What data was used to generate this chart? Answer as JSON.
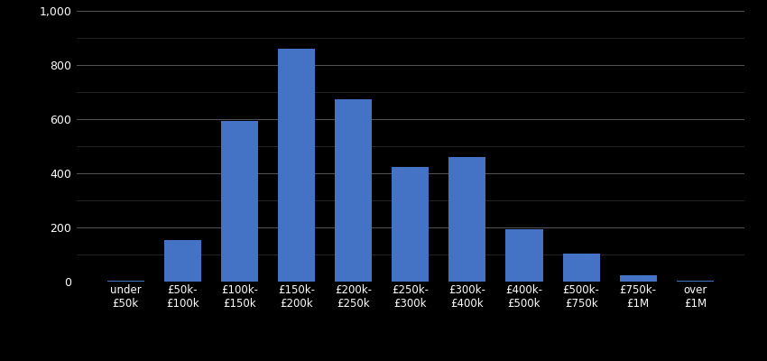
{
  "categories": [
    "under\n£50k",
    "£50k-\n£100k",
    "£100k-\n£150k",
    "£150k-\n£200k",
    "£200k-\n£250k",
    "£250k-\n£300k",
    "£300k-\n£400k",
    "£400k-\n£500k",
    "£500k-\n£750k",
    "£750k-\n£1M",
    "over\n£1M"
  ],
  "values": [
    5,
    155,
    595,
    860,
    675,
    425,
    460,
    192,
    105,
    22,
    5
  ],
  "bar_color": "#4472C4",
  "background_color": "#000000",
  "text_color": "#ffffff",
  "major_grid_color": "#555555",
  "minor_grid_color": "#333333",
  "ylim": [
    0,
    1000
  ],
  "yticks_major": [
    0,
    200,
    400,
    600,
    800,
    1000
  ],
  "yticks_minor": [
    100,
    300,
    500,
    700,
    900
  ],
  "bar_width": 0.65
}
